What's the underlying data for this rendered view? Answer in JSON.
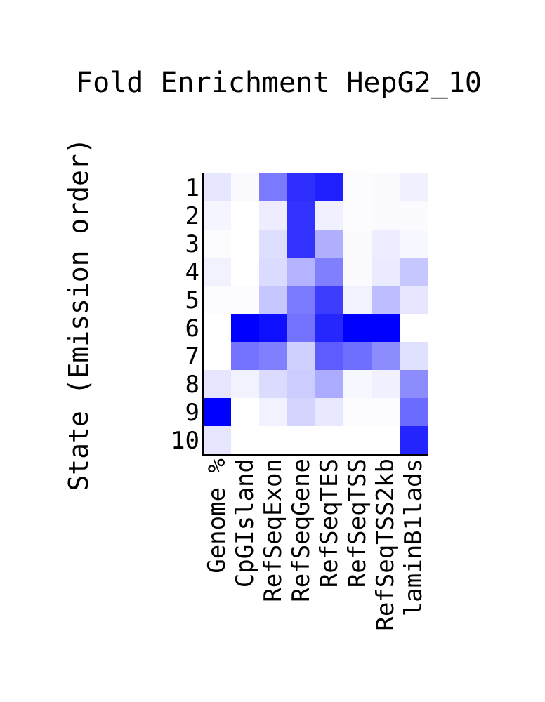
{
  "chart_data": {
    "type": "heatmap",
    "title": "Fold Enrichment HepG2_10",
    "xlabel": "",
    "ylabel": "State (Emission order)",
    "rows": [
      "1",
      "2",
      "3",
      "4",
      "5",
      "6",
      "7",
      "8",
      "9",
      "10"
    ],
    "columns": [
      "Genome %",
      "CpGIsland",
      "RefSeqExon",
      "RefSeqGene",
      "RefSeqTES",
      "RefSeqTSS",
      "RefSeqTSS2kb",
      "laminB1lads"
    ],
    "color_scale": {
      "low": "#ffffff",
      "high": "#0000ff"
    },
    "values": [
      [
        0.1,
        0.02,
        0.52,
        0.82,
        0.88,
        0.01,
        0.02,
        0.06
      ],
      [
        0.04,
        0.0,
        0.07,
        0.8,
        0.06,
        0.01,
        0.02,
        0.02
      ],
      [
        0.01,
        0.0,
        0.13,
        0.8,
        0.31,
        0.02,
        0.07,
        0.03
      ],
      [
        0.05,
        0.0,
        0.14,
        0.3,
        0.5,
        0.02,
        0.08,
        0.22
      ],
      [
        0.01,
        0.01,
        0.22,
        0.52,
        0.76,
        0.05,
        0.26,
        0.1
      ],
      [
        0.0,
        1.0,
        0.94,
        0.55,
        0.85,
        1.0,
        1.0,
        0.0
      ],
      [
        0.0,
        0.55,
        0.5,
        0.18,
        0.64,
        0.57,
        0.45,
        0.12
      ],
      [
        0.1,
        0.05,
        0.14,
        0.2,
        0.33,
        0.03,
        0.06,
        0.45
      ],
      [
        1.0,
        0.0,
        0.05,
        0.17,
        0.09,
        0.01,
        0.01,
        0.58
      ],
      [
        0.1,
        0.0,
        0.0,
        0.0,
        0.0,
        0.0,
        0.0,
        0.86
      ]
    ]
  }
}
